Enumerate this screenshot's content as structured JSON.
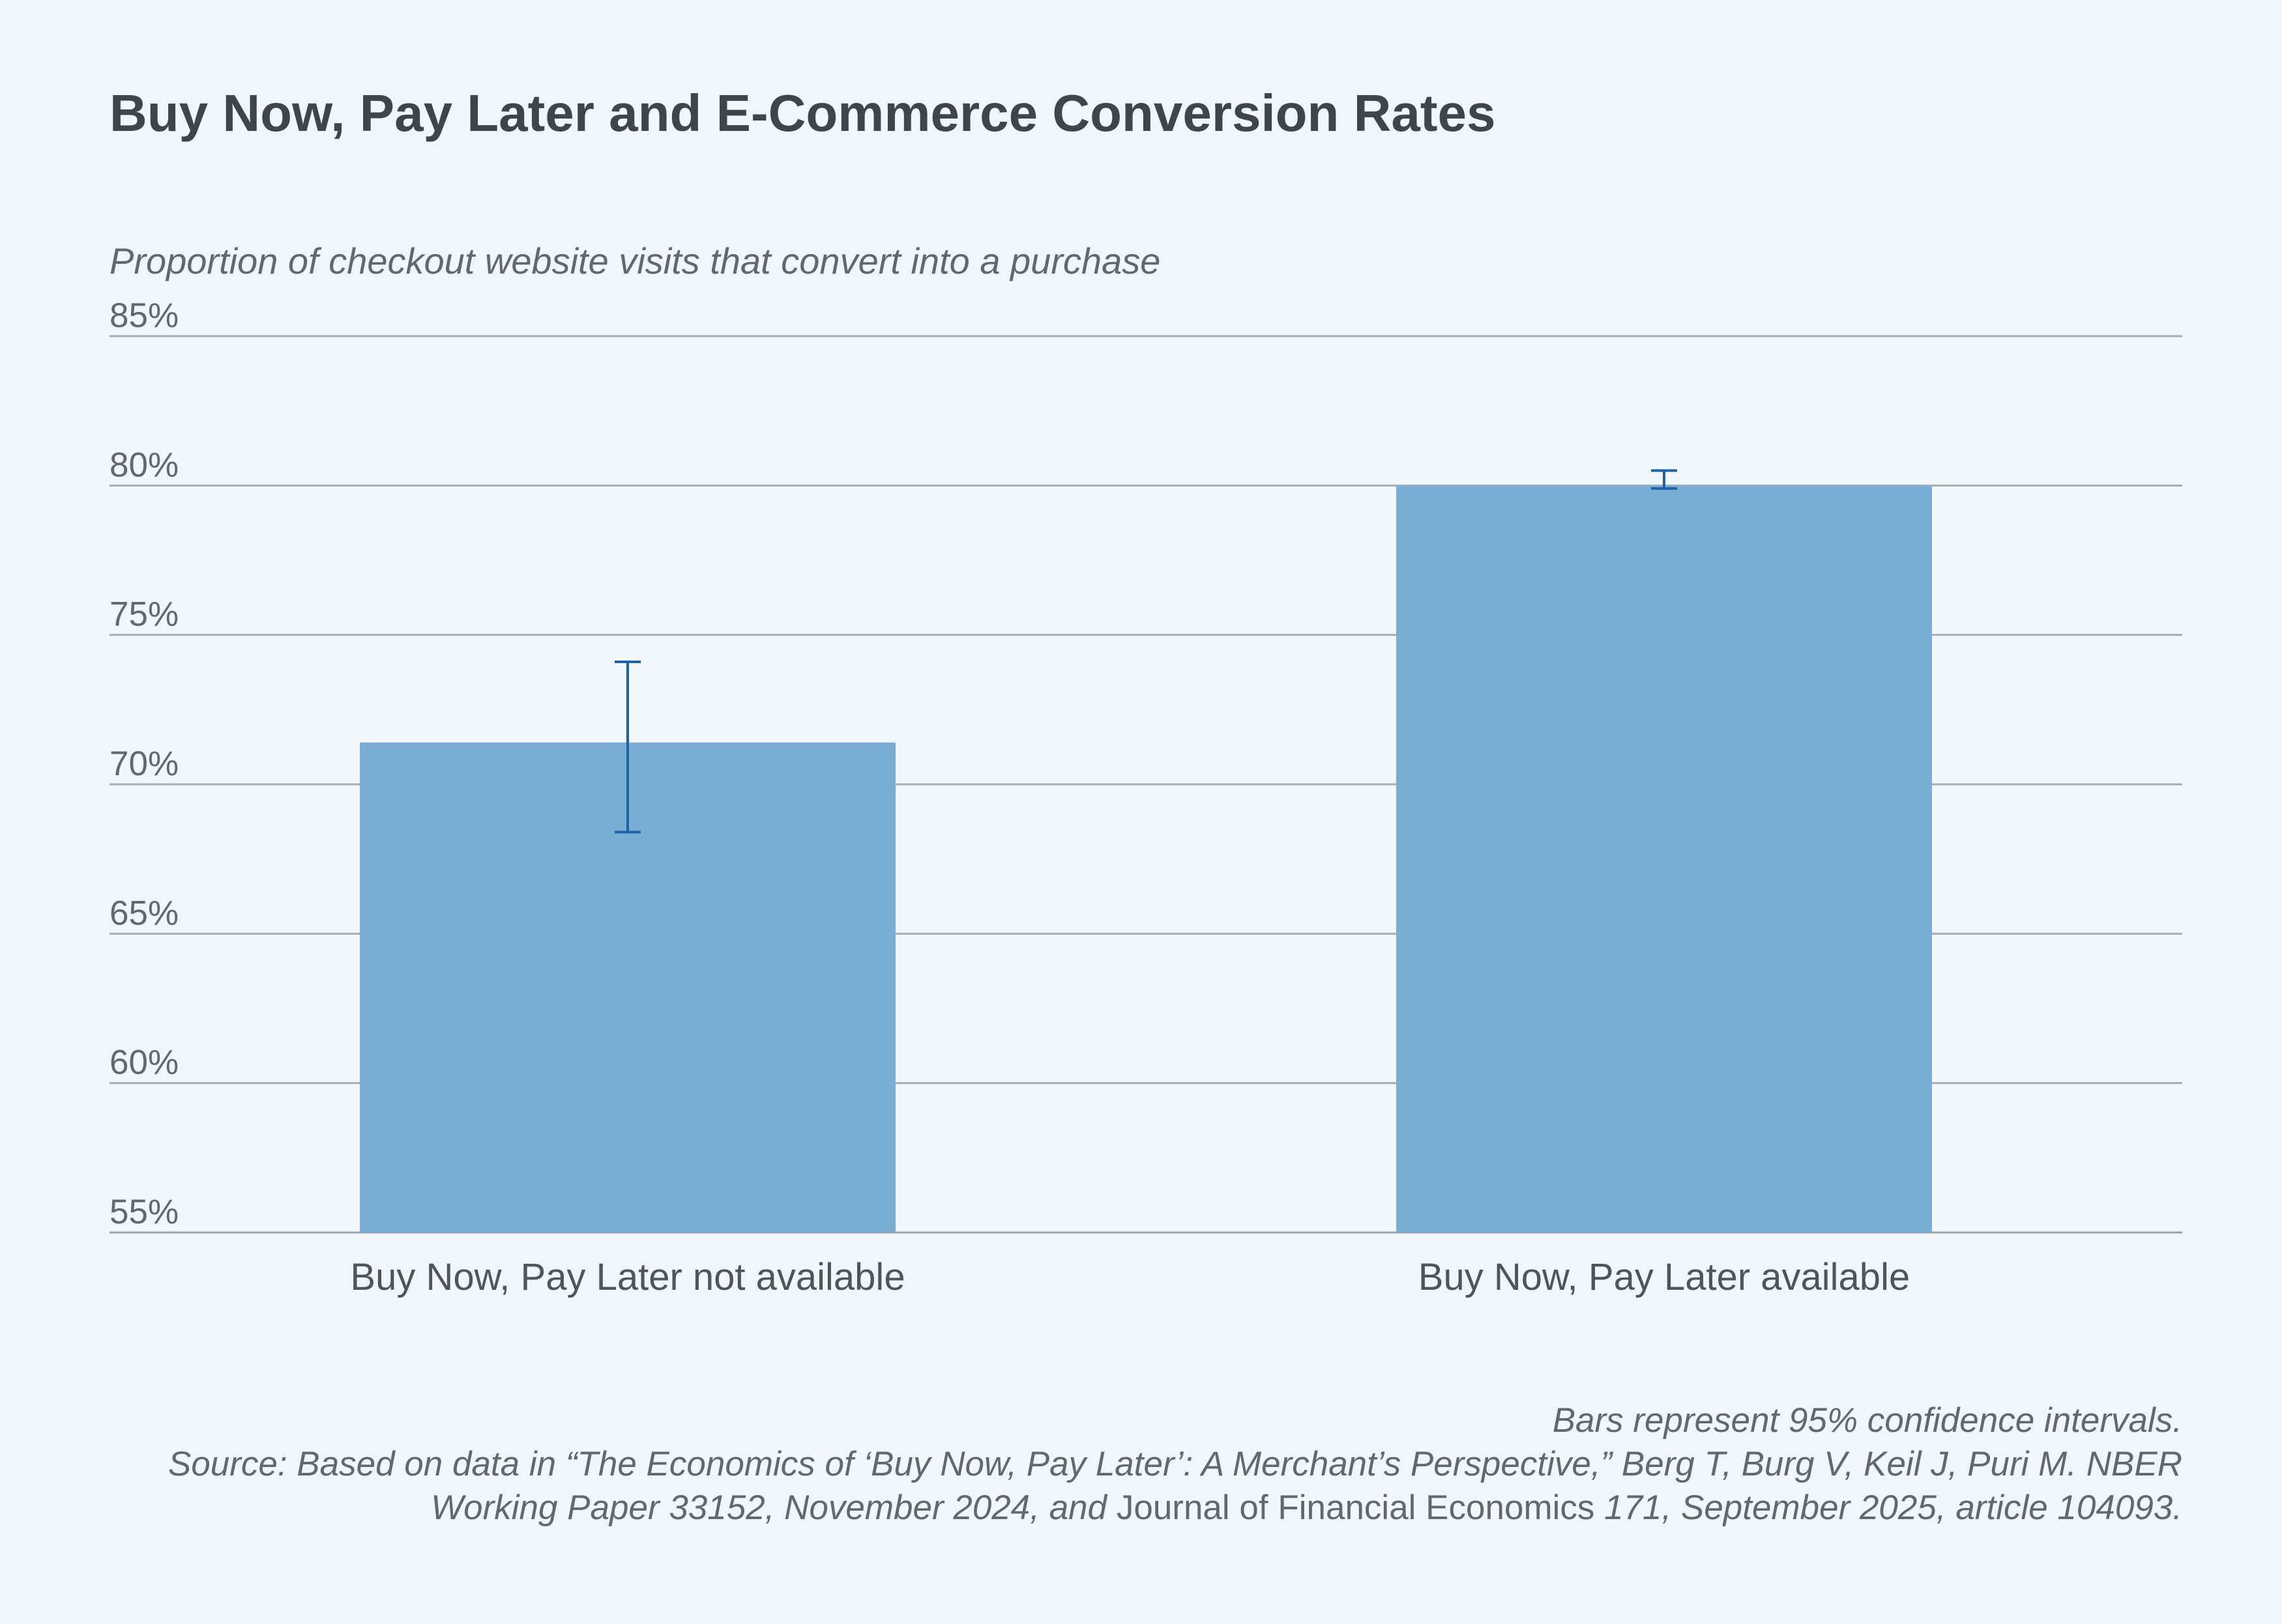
{
  "title": "Buy Now, Pay Later and E-Commerce Conversion Rates",
  "subtitle": "Proportion of checkout website visits that convert into a purchase",
  "chart_data": {
    "type": "bar",
    "categories": [
      "Buy Now, Pay Later not available",
      "Buy Now, Pay Later available"
    ],
    "values": [
      71.4,
      80.0
    ],
    "error_bars": [
      {
        "low": 68.4,
        "high": 74.1
      },
      {
        "low": 79.9,
        "high": 80.5
      }
    ],
    "ylim": [
      55,
      85
    ],
    "yticks": [
      85,
      80,
      75,
      70,
      65,
      60,
      55
    ],
    "ytick_labels": [
      "85%",
      "80%",
      "75%",
      "70%",
      "65%",
      "60%",
      "55%"
    ],
    "grid": true,
    "colors": {
      "bar": "#7aadd3",
      "error_bar": "#1f62a8",
      "grid": "#a8aeb4",
      "axis": "#9aa0a6"
    }
  },
  "notes": {
    "ci_note": "Bars represent 95% confidence intervals.",
    "source_line1": "Source: Based on data in “The Economics of ‘Buy Now, Pay Later’: A Merchant’s Perspective,” Berg T, Burg V, Keil J, Puri M. NBER",
    "source_line2_a": "Working Paper 33152, November 2024, and ",
    "source_line2_journal": "Journal of Financial Economics",
    "source_line2_b": " 171, September 2025, article 104093."
  }
}
